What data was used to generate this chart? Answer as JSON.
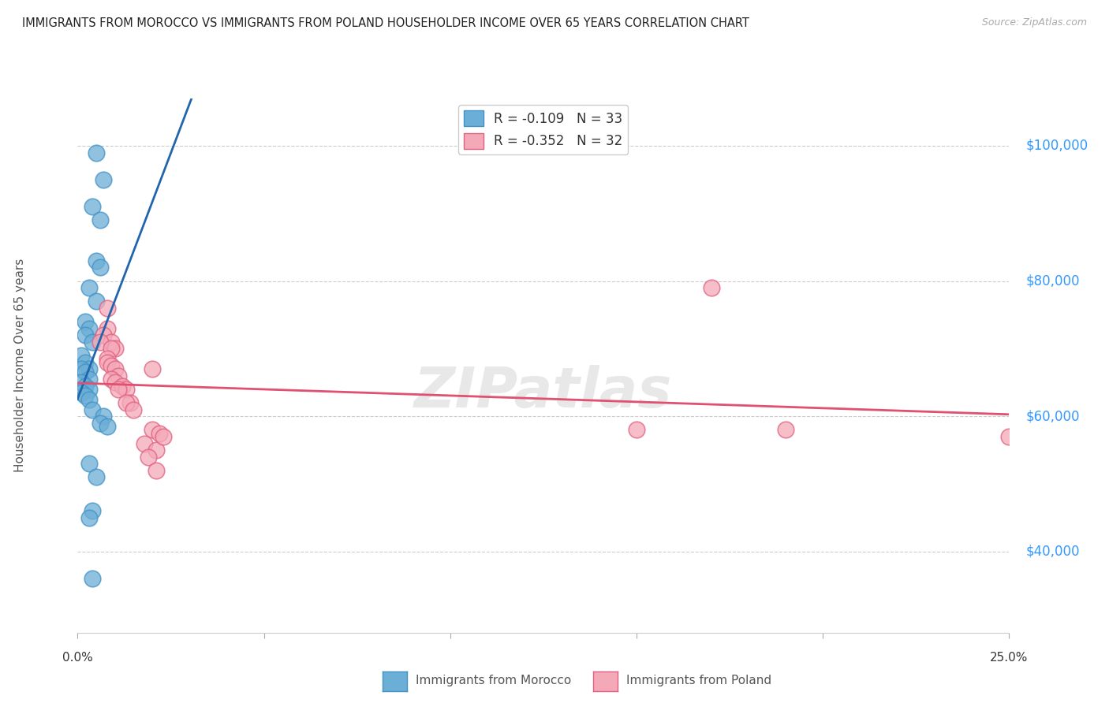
{
  "title": "IMMIGRANTS FROM MOROCCO VS IMMIGRANTS FROM POLAND HOUSEHOLDER INCOME OVER 65 YEARS CORRELATION CHART",
  "source": "Source: ZipAtlas.com",
  "ylabel": "Householder Income Over 65 years",
  "xmin": 0.0,
  "xmax": 0.25,
  "ymin": 28000,
  "ymax": 107000,
  "yticks": [
    40000,
    60000,
    80000,
    100000
  ],
  "ytick_labels": [
    "$40,000",
    "$60,000",
    "$80,000",
    "$100,000"
  ],
  "morocco_color": "#6baed6",
  "morocco_edge": "#4292c6",
  "poland_color": "#f4a9b8",
  "poland_edge": "#e06080",
  "morocco_line_color": "#2166ac",
  "poland_line_color": "#e05070",
  "morocco_R": -0.109,
  "morocco_N": 33,
  "poland_R": -0.352,
  "poland_N": 32,
  "morocco_points": [
    [
      0.005,
      99000
    ],
    [
      0.007,
      95000
    ],
    [
      0.004,
      91000
    ],
    [
      0.006,
      89000
    ],
    [
      0.005,
      83000
    ],
    [
      0.006,
      82000
    ],
    [
      0.003,
      79000
    ],
    [
      0.005,
      77000
    ],
    [
      0.002,
      74000
    ],
    [
      0.003,
      73000
    ],
    [
      0.002,
      72000
    ],
    [
      0.004,
      71000
    ],
    [
      0.001,
      69000
    ],
    [
      0.002,
      68000
    ],
    [
      0.003,
      67000
    ],
    [
      0.001,
      67000
    ],
    [
      0.002,
      66500
    ],
    [
      0.003,
      65500
    ],
    [
      0.001,
      65000
    ],
    [
      0.002,
      64500
    ],
    [
      0.003,
      64000
    ],
    [
      0.001,
      63500
    ],
    [
      0.002,
      63000
    ],
    [
      0.003,
      62500
    ],
    [
      0.004,
      61000
    ],
    [
      0.007,
      60000
    ],
    [
      0.006,
      59000
    ],
    [
      0.008,
      58500
    ],
    [
      0.003,
      53000
    ],
    [
      0.005,
      51000
    ],
    [
      0.004,
      46000
    ],
    [
      0.003,
      45000
    ],
    [
      0.004,
      36000
    ]
  ],
  "poland_points": [
    [
      0.008,
      76000
    ],
    [
      0.008,
      73000
    ],
    [
      0.007,
      72000
    ],
    [
      0.009,
      71000
    ],
    [
      0.006,
      71000
    ],
    [
      0.01,
      70000
    ],
    [
      0.009,
      70000
    ],
    [
      0.008,
      68500
    ],
    [
      0.008,
      68000
    ],
    [
      0.009,
      67500
    ],
    [
      0.01,
      67000
    ],
    [
      0.011,
      66000
    ],
    [
      0.009,
      65500
    ],
    [
      0.01,
      65000
    ],
    [
      0.012,
      64500
    ],
    [
      0.013,
      64000
    ],
    [
      0.011,
      64000
    ],
    [
      0.014,
      62000
    ],
    [
      0.013,
      62000
    ],
    [
      0.015,
      61000
    ],
    [
      0.02,
      67000
    ],
    [
      0.02,
      58000
    ],
    [
      0.018,
      56000
    ],
    [
      0.021,
      55000
    ],
    [
      0.019,
      54000
    ],
    [
      0.022,
      57500
    ],
    [
      0.023,
      57000
    ],
    [
      0.021,
      52000
    ],
    [
      0.17,
      79000
    ],
    [
      0.15,
      58000
    ],
    [
      0.19,
      58000
    ],
    [
      0.25,
      57000
    ]
  ],
  "watermark": "ZIPatlas",
  "background_color": "#ffffff"
}
